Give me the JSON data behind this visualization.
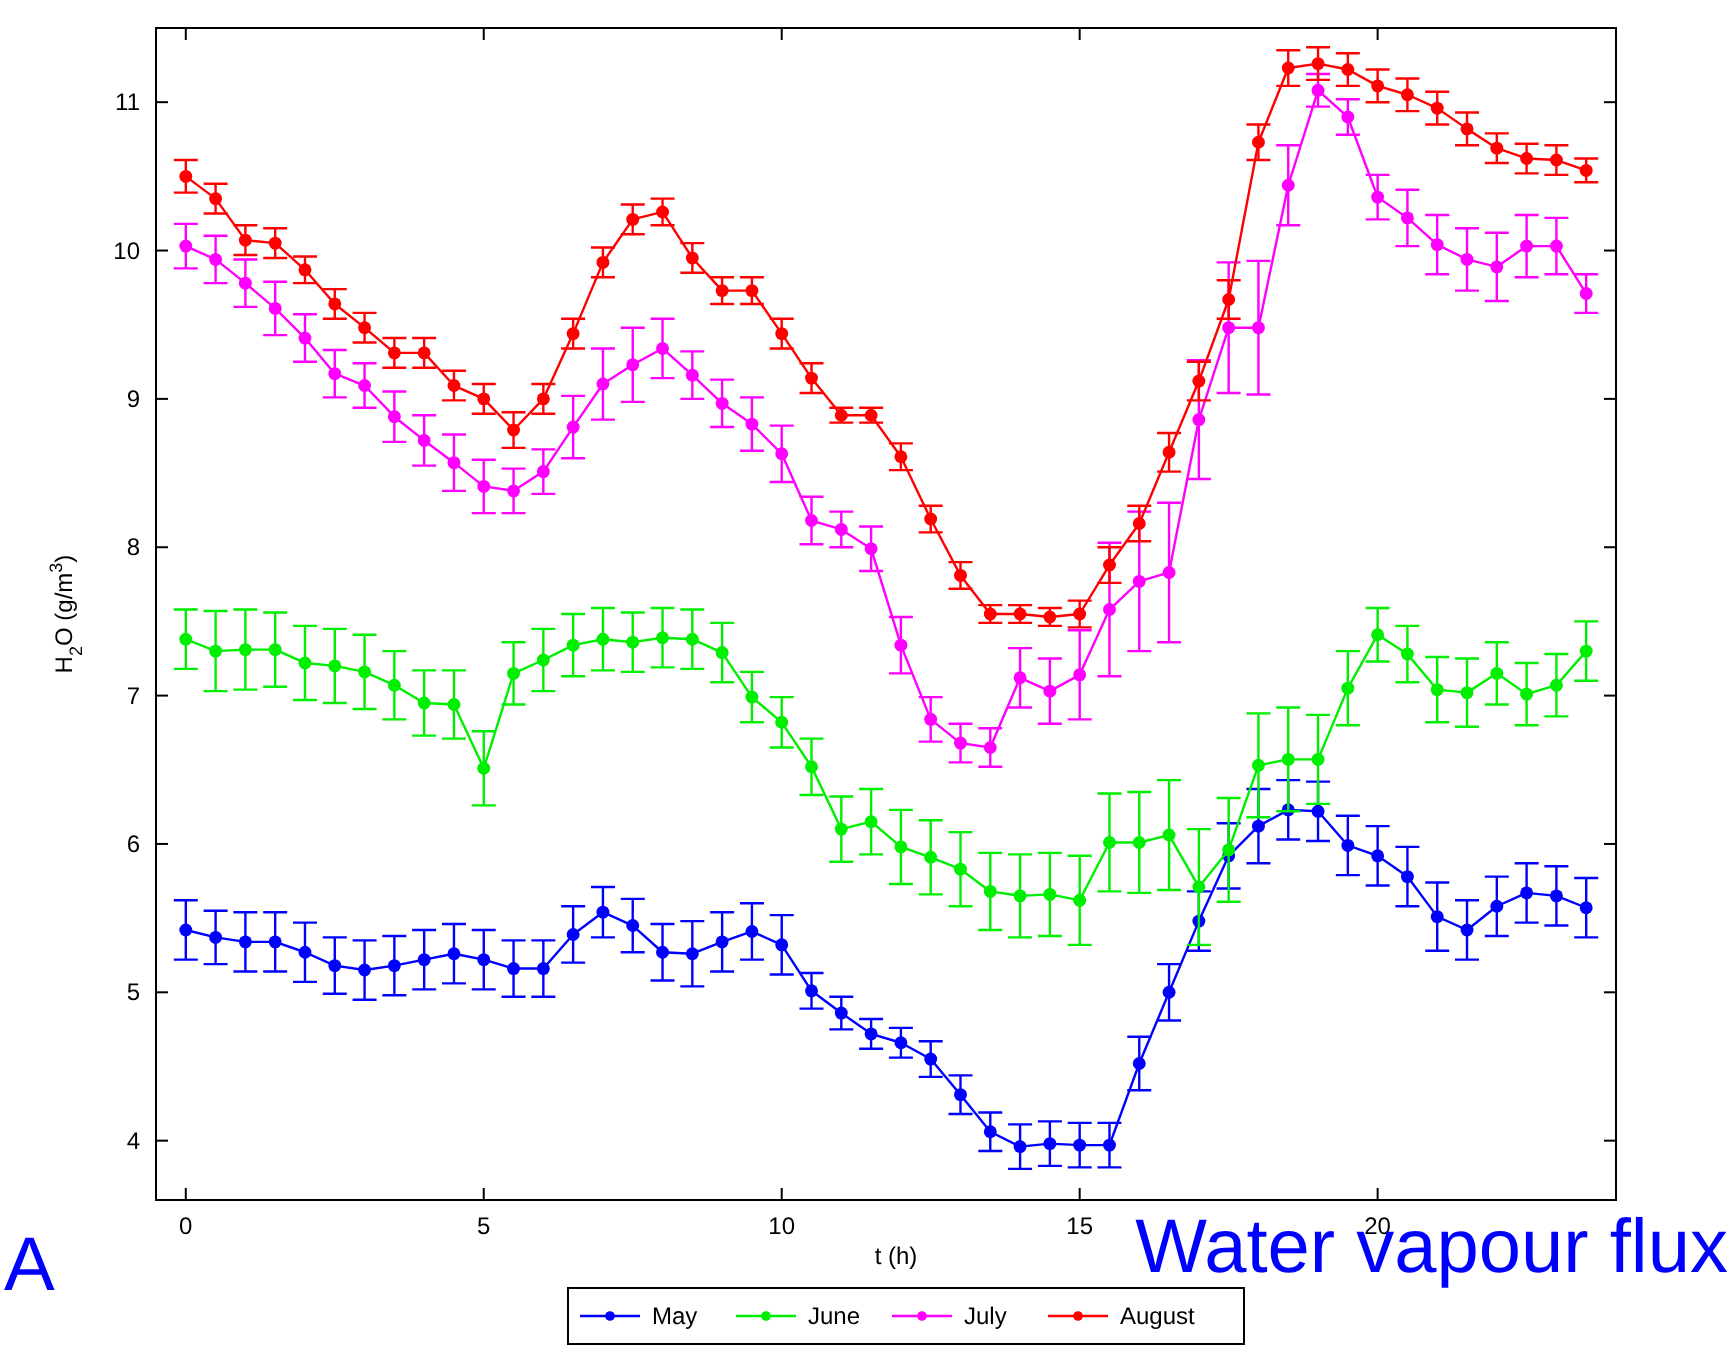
{
  "chart_data": {
    "type": "line",
    "xlabel": "t (h)",
    "ylabel": "H$_{2}$O (g/m$^{3}$)",
    "x": [
      0,
      0.5,
      1,
      1.5,
      2,
      2.5,
      3,
      3.5,
      4,
      4.5,
      5,
      5.5,
      6,
      6.5,
      7,
      7.5,
      8,
      8.5,
      9,
      9.5,
      10,
      10.5,
      11,
      11.5,
      12,
      12.5,
      13,
      13.5,
      14,
      14.5,
      15,
      15.5,
      16,
      16.5,
      17,
      17.5,
      18,
      18.5,
      19,
      19.5,
      20,
      20.5,
      21,
      21.5,
      22,
      22.5,
      23,
      23.5
    ],
    "xlim": [
      -0.5,
      24
    ],
    "xticks": [
      0,
      5,
      10,
      15,
      20
    ],
    "ylim": [
      3.6,
      11.5
    ],
    "yticks": [
      4,
      5,
      6,
      7,
      8,
      9,
      10,
      11
    ],
    "grid": false,
    "legend": "bottom",
    "marker": "circle",
    "line_style": "solid",
    "annotations": [
      "A",
      "Water vapour flux"
    ],
    "series": [
      {
        "name": "May",
        "color": "#0000ff",
        "values": [
          5.42,
          5.37,
          5.34,
          5.34,
          5.27,
          5.18,
          5.15,
          5.18,
          5.22,
          5.26,
          5.22,
          5.16,
          5.16,
          5.39,
          5.54,
          5.45,
          5.27,
          5.26,
          5.34,
          5.41,
          5.32,
          5.01,
          4.86,
          4.72,
          4.66,
          4.55,
          4.31,
          4.06,
          3.96,
          3.98,
          3.97,
          3.97,
          4.52,
          5.0,
          5.48,
          5.92,
          6.12,
          6.23,
          6.22,
          5.99,
          5.92,
          5.78,
          5.51,
          5.42,
          5.58,
          5.67,
          5.65,
          5.57
        ],
        "errors": [
          0.2,
          0.18,
          0.2,
          0.2,
          0.2,
          0.19,
          0.2,
          0.2,
          0.2,
          0.2,
          0.2,
          0.19,
          0.19,
          0.19,
          0.17,
          0.18,
          0.19,
          0.22,
          0.2,
          0.19,
          0.2,
          0.12,
          0.11,
          0.1,
          0.1,
          0.12,
          0.13,
          0.13,
          0.15,
          0.15,
          0.15,
          0.15,
          0.18,
          0.19,
          0.2,
          0.22,
          0.25,
          0.2,
          0.2,
          0.2,
          0.2,
          0.2,
          0.23,
          0.2,
          0.2,
          0.2,
          0.2,
          0.2
        ]
      },
      {
        "name": "June",
        "color": "#00ee00",
        "values": [
          7.38,
          7.3,
          7.31,
          7.31,
          7.22,
          7.2,
          7.16,
          7.07,
          6.95,
          6.94,
          6.51,
          7.15,
          7.24,
          7.34,
          7.38,
          7.36,
          7.39,
          7.38,
          7.29,
          6.99,
          6.82,
          6.52,
          6.1,
          6.15,
          5.98,
          5.91,
          5.83,
          5.68,
          5.65,
          5.66,
          5.62,
          6.01,
          6.01,
          6.06,
          5.71,
          5.96,
          6.53,
          6.57,
          6.57,
          7.05,
          7.41,
          7.28,
          7.04,
          7.02,
          7.15,
          7.01,
          7.07,
          7.3
        ],
        "errors": [
          0.2,
          0.27,
          0.27,
          0.25,
          0.25,
          0.25,
          0.25,
          0.23,
          0.22,
          0.23,
          0.25,
          0.21,
          0.21,
          0.21,
          0.21,
          0.2,
          0.2,
          0.2,
          0.2,
          0.17,
          0.17,
          0.19,
          0.22,
          0.22,
          0.25,
          0.25,
          0.25,
          0.26,
          0.28,
          0.28,
          0.3,
          0.33,
          0.34,
          0.37,
          0.39,
          0.35,
          0.35,
          0.35,
          0.3,
          0.25,
          0.18,
          0.19,
          0.22,
          0.23,
          0.21,
          0.21,
          0.21,
          0.2
        ]
      },
      {
        "name": "July",
        "color": "#ff00ff",
        "values": [
          10.03,
          9.94,
          9.78,
          9.61,
          9.41,
          9.17,
          9.09,
          8.88,
          8.72,
          8.57,
          8.41,
          8.38,
          8.51,
          8.81,
          9.1,
          9.23,
          9.34,
          9.16,
          8.97,
          8.83,
          8.63,
          8.18,
          8.12,
          7.99,
          7.34,
          6.84,
          6.68,
          6.65,
          7.12,
          7.03,
          7.14,
          7.58,
          7.77,
          7.83,
          8.86,
          9.48,
          9.48,
          10.44,
          11.08,
          10.9,
          10.36,
          10.22,
          10.04,
          9.94,
          9.89,
          10.03,
          10.03,
          9.71
        ],
        "errors": [
          0.15,
          0.16,
          0.16,
          0.18,
          0.16,
          0.16,
          0.15,
          0.17,
          0.17,
          0.19,
          0.18,
          0.15,
          0.15,
          0.21,
          0.24,
          0.25,
          0.2,
          0.16,
          0.16,
          0.18,
          0.19,
          0.16,
          0.12,
          0.15,
          0.19,
          0.15,
          0.13,
          0.13,
          0.2,
          0.22,
          0.3,
          0.45,
          0.47,
          0.47,
          0.4,
          0.44,
          0.45,
          0.27,
          0.11,
          0.12,
          0.15,
          0.19,
          0.2,
          0.21,
          0.23,
          0.21,
          0.19,
          0.13
        ]
      },
      {
        "name": "August",
        "color": "#ff0000",
        "values": [
          10.5,
          10.35,
          10.07,
          10.05,
          9.87,
          9.64,
          9.48,
          9.31,
          9.31,
          9.09,
          9.0,
          8.79,
          9.0,
          9.44,
          9.92,
          10.21,
          10.26,
          9.95,
          9.73,
          9.73,
          9.44,
          9.14,
          8.89,
          8.89,
          8.61,
          8.19,
          7.81,
          7.55,
          7.55,
          7.53,
          7.55,
          7.88,
          8.16,
          8.64,
          9.12,
          9.67,
          10.73,
          11.23,
          11.26,
          11.22,
          11.11,
          11.05,
          10.96,
          10.82,
          10.69,
          10.62,
          10.61,
          10.54
        ],
        "errors": [
          0.11,
          0.1,
          0.1,
          0.1,
          0.09,
          0.1,
          0.1,
          0.1,
          0.1,
          0.1,
          0.1,
          0.12,
          0.1,
          0.1,
          0.1,
          0.1,
          0.09,
          0.1,
          0.09,
          0.09,
          0.1,
          0.1,
          0.05,
          0.05,
          0.09,
          0.09,
          0.09,
          0.06,
          0.06,
          0.06,
          0.09,
          0.12,
          0.12,
          0.13,
          0.13,
          0.13,
          0.12,
          0.12,
          0.11,
          0.11,
          0.11,
          0.11,
          0.11,
          0.11,
          0.1,
          0.1,
          0.1,
          0.08
        ]
      }
    ]
  }
}
